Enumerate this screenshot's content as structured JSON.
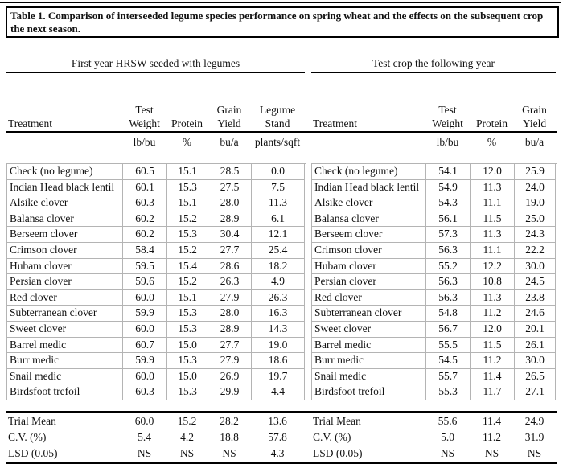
{
  "title": "Table 1. Comparison of interseeded legume species performance on spring wheat and the effects on the subsequent crop the next season.",
  "colors": {
    "text": "#111111",
    "rule": "#000000",
    "grid_border": "#b4b4b4",
    "background": "#ffffff"
  },
  "sections": [
    {
      "header": "First year HRSW seeded with legumes",
      "columns": [
        {
          "top": "",
          "label": "Treatment",
          "unit": "",
          "align": "left"
        },
        {
          "top": "Test",
          "label": "Weight",
          "unit": "lb/bu"
        },
        {
          "top": "",
          "label": "Protein",
          "unit": "%"
        },
        {
          "top": "Grain",
          "label": "Yield",
          "unit": "bu/a"
        },
        {
          "top": "Legume",
          "label": "Stand",
          "unit": "plants/sqft"
        }
      ],
      "rows": [
        [
          "Check (no legume)",
          "60.5",
          "15.1",
          "28.5",
          "0.0"
        ],
        [
          "Indian Head black lentil",
          "60.1",
          "15.3",
          "27.5",
          "7.5"
        ],
        [
          "Alsike clover",
          "60.3",
          "15.1",
          "28.0",
          "11.3"
        ],
        [
          "Balansa clover",
          "60.2",
          "15.2",
          "28.9",
          "6.1"
        ],
        [
          "Berseem clover",
          "60.2",
          "15.3",
          "30.4",
          "12.1"
        ],
        [
          "Crimson clover",
          "58.4",
          "15.2",
          "27.7",
          "25.4"
        ],
        [
          "Hubam clover",
          "59.5",
          "15.4",
          "28.6",
          "18.2"
        ],
        [
          "Persian clover",
          "59.6",
          "15.2",
          "26.3",
          "4.9"
        ],
        [
          "Red clover",
          "60.0",
          "15.1",
          "27.9",
          "26.3"
        ],
        [
          "Subterranean clover",
          "59.9",
          "15.3",
          "28.0",
          "16.3"
        ],
        [
          "Sweet clover",
          "60.0",
          "15.3",
          "28.9",
          "14.3"
        ],
        [
          "Barrel medic",
          "60.7",
          "15.0",
          "27.7",
          "19.0"
        ],
        [
          "Burr medic",
          "59.9",
          "15.3",
          "27.9",
          "18.6"
        ],
        [
          "Snail medic",
          "60.0",
          "15.0",
          "26.9",
          "19.7"
        ],
        [
          "Birdsfoot trefoil",
          "60.3",
          "15.3",
          "29.9",
          "4.4"
        ]
      ],
      "summary": [
        [
          "Trial Mean",
          "60.0",
          "15.2",
          "28.2",
          "13.6"
        ],
        [
          "C.V. (%)",
          "5.4",
          "4.2",
          "18.8",
          "57.8"
        ],
        [
          "LSD (0.05)",
          "NS",
          "NS",
          "NS",
          "4.3"
        ]
      ]
    },
    {
      "header": "Test crop the following year",
      "columns": [
        {
          "top": "",
          "label": "Treatment",
          "unit": "",
          "align": "left"
        },
        {
          "top": "Test",
          "label": "Weight",
          "unit": "lb/bu"
        },
        {
          "top": "",
          "label": "Protein",
          "unit": "%"
        },
        {
          "top": "Grain",
          "label": "Yield",
          "unit": "bu/a"
        }
      ],
      "rows": [
        [
          "Check (no legume)",
          "54.1",
          "12.0",
          "25.9"
        ],
        [
          "Indian Head black lentil",
          "54.9",
          "11.3",
          "24.0"
        ],
        [
          "Alsike clover",
          "54.3",
          "11.1",
          "19.0"
        ],
        [
          "Balansa clover",
          "56.1",
          "11.5",
          "25.0"
        ],
        [
          "Berseem clover",
          "57.3",
          "11.3",
          "24.3"
        ],
        [
          "Crimson clover",
          "56.3",
          "11.1",
          "22.2"
        ],
        [
          "Hubam clover",
          "55.2",
          "12.2",
          "30.0"
        ],
        [
          "Persian clover",
          "56.3",
          "10.8",
          "24.5"
        ],
        [
          "Red clover",
          "56.3",
          "11.3",
          "23.8"
        ],
        [
          "Subterranean clover",
          "54.8",
          "11.2",
          "24.6"
        ],
        [
          "Sweet clover",
          "56.7",
          "12.0",
          "20.1"
        ],
        [
          "Barrel medic",
          "55.5",
          "11.5",
          "26.1"
        ],
        [
          "Burr medic",
          "54.5",
          "11.2",
          "30.0"
        ],
        [
          "Snail medic",
          "55.7",
          "11.4",
          "26.5"
        ],
        [
          "Birdsfoot trefoil",
          "55.3",
          "11.7",
          "27.1"
        ]
      ],
      "summary": [
        [
          "Trial Mean",
          "55.6",
          "11.4",
          "24.9"
        ],
        [
          "C.V. (%)",
          "5.0",
          "11.2",
          "31.9"
        ],
        [
          "LSD (0.05)",
          "NS",
          "NS",
          "NS"
        ]
      ]
    }
  ]
}
